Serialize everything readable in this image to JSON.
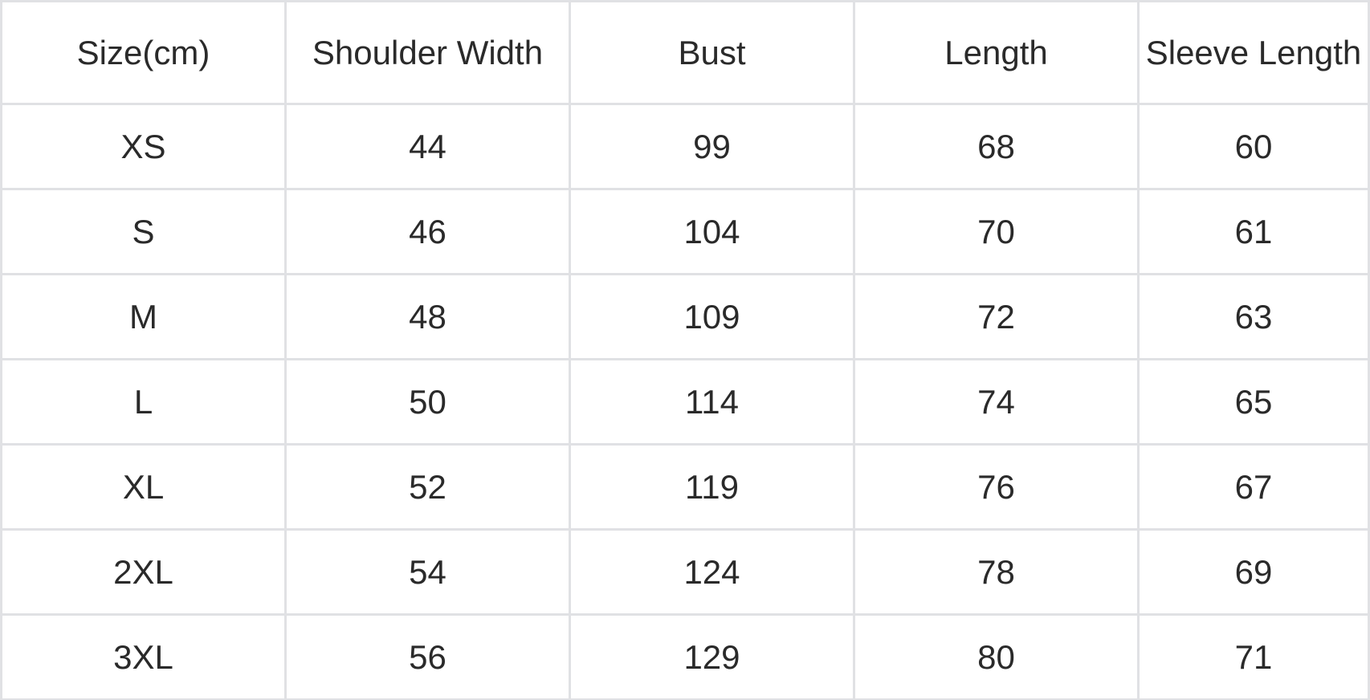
{
  "colors": {
    "background": "#ffffff",
    "border": "#e0e1e4",
    "text": "#2a2a2a"
  },
  "chart_data": {
    "type": "table",
    "units": "cm",
    "columns": [
      "Size(cm)",
      "Shoulder Width",
      "Bust",
      "Length",
      "Sleeve Length"
    ],
    "rows": [
      [
        "XS",
        44,
        99,
        68,
        60
      ],
      [
        "S",
        46,
        104,
        70,
        61
      ],
      [
        "M",
        48,
        109,
        72,
        63
      ],
      [
        "L",
        50,
        114,
        74,
        65
      ],
      [
        "XL",
        52,
        119,
        76,
        67
      ],
      [
        "2XL",
        54,
        124,
        78,
        69
      ],
      [
        "3XL",
        56,
        129,
        80,
        71
      ]
    ]
  }
}
